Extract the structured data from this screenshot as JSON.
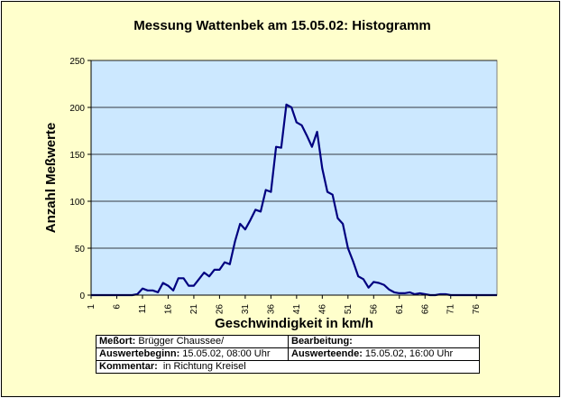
{
  "chart_data": {
    "type": "line",
    "title": "Messung Wattenbek am 15.05.02: Histogramm",
    "xlabel": "Geschwindigkeit in km/h",
    "ylabel": "Anzahl Meßwerte",
    "ylim": [
      0,
      250
    ],
    "yticks": [
      0,
      50,
      100,
      150,
      200,
      250
    ],
    "xlim": [
      1,
      80
    ],
    "xticks": [
      1,
      6,
      11,
      16,
      21,
      26,
      31,
      36,
      41,
      46,
      51,
      56,
      61,
      66,
      71,
      76
    ],
    "grid": "horizontal",
    "x": [
      1,
      2,
      3,
      4,
      5,
      6,
      7,
      8,
      9,
      10,
      11,
      12,
      13,
      14,
      15,
      16,
      17,
      18,
      19,
      20,
      21,
      22,
      23,
      24,
      25,
      26,
      27,
      28,
      29,
      30,
      31,
      32,
      33,
      34,
      35,
      36,
      37,
      38,
      39,
      40,
      41,
      42,
      43,
      44,
      45,
      46,
      47,
      48,
      49,
      50,
      51,
      52,
      53,
      54,
      55,
      56,
      57,
      58,
      59,
      60,
      61,
      62,
      63,
      64,
      65,
      66,
      67,
      68,
      69,
      70,
      71,
      72,
      73,
      74,
      75,
      76,
      77,
      78,
      79,
      80
    ],
    "series": [
      {
        "color": "#000080",
        "values": [
          0,
          0,
          0,
          0,
          0,
          0,
          0,
          0,
          0,
          1,
          7,
          5,
          5,
          3,
          13,
          10,
          5,
          18,
          18,
          10,
          10,
          17,
          24,
          20,
          27,
          27,
          35,
          33,
          57,
          76,
          70,
          80,
          91,
          89,
          112,
          110,
          158,
          157,
          203,
          200,
          184,
          181,
          170,
          158,
          174,
          135,
          110,
          107,
          82,
          76,
          50,
          36,
          20,
          17,
          8,
          14,
          13,
          11,
          6,
          3,
          2,
          2,
          3,
          1,
          2,
          1,
          0,
          0,
          1,
          1,
          0,
          0,
          0,
          0,
          0,
          0,
          0,
          0,
          0,
          0
        ]
      }
    ]
  },
  "info": {
    "messort_label": "Meßort:",
    "messort_value": "Brügger Chaussee/",
    "bearbeitung_label": "Bearbeitung:",
    "bearbeitung_value": "",
    "beginn_label": "Auswertebeginn:",
    "beginn_value": "15.05.02, 08:00 Uhr",
    "ende_label": "Auswerteende:",
    "ende_value": "15.05.02, 16:00 Uhr",
    "kommentar_label": "Kommentar:",
    "kommentar_value": "in Richtung Kreisel"
  }
}
